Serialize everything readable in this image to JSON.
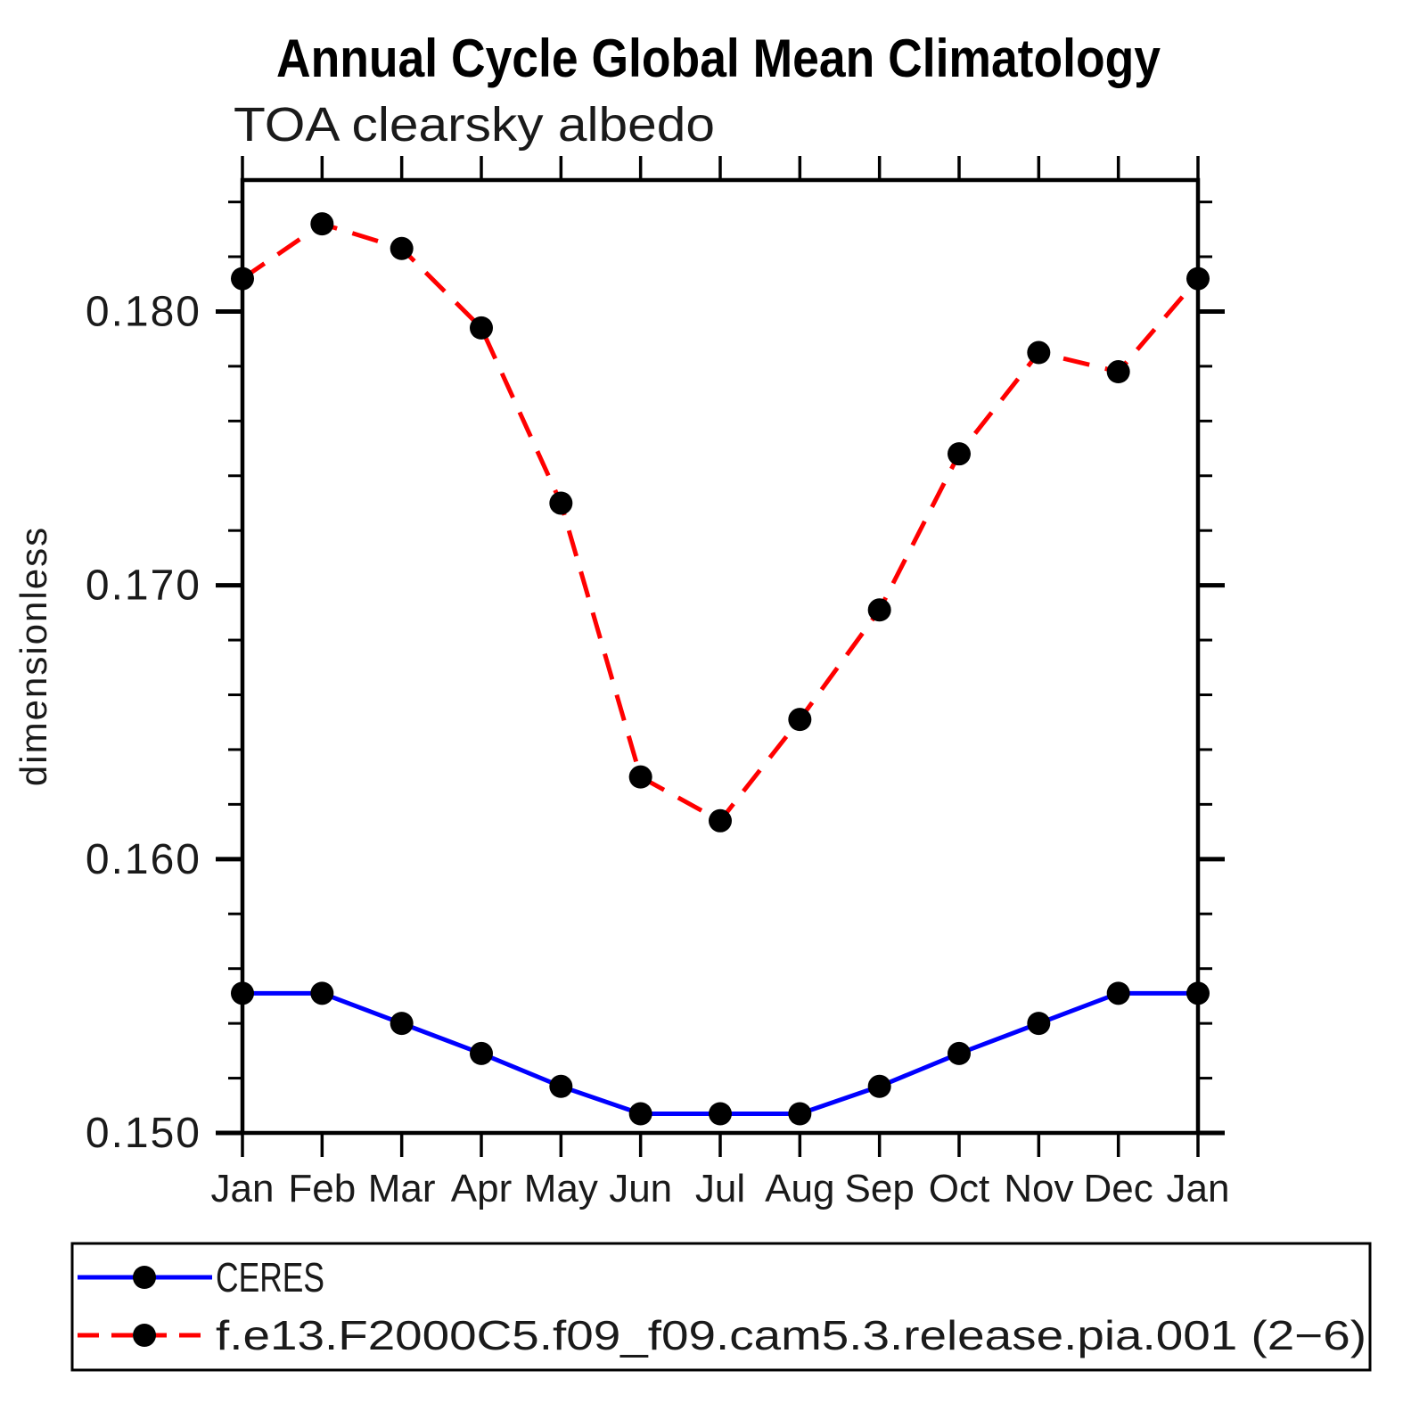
{
  "chart_data": {
    "type": "line",
    "title": "Annual Cycle Global Mean Climatology",
    "subtitle": "TOA clearsky albedo",
    "ylabel": "dimensionless",
    "xlabel": "",
    "categories": [
      "Jan",
      "Feb",
      "Mar",
      "Apr",
      "May",
      "Jun",
      "Jul",
      "Aug",
      "Sep",
      "Oct",
      "Nov",
      "Dec",
      "Jan"
    ],
    "series": [
      {
        "name": "CERES",
        "color": "#0000ff",
        "line_style": "solid",
        "marker": "filled-circle",
        "marker_color": "#000000",
        "values": [
          0.1551,
          0.1551,
          0.154,
          0.1529,
          0.1517,
          0.1507,
          0.1507,
          0.1507,
          0.1517,
          0.1529,
          0.154,
          0.1551,
          0.1551
        ]
      },
      {
        "name": "f.e13.F2000C5.f09_f09.cam5.3.release.pia.001 (2−6)",
        "color": "#ff0000",
        "line_style": "dashed",
        "marker": "filled-circle",
        "marker_color": "#000000",
        "values": [
          0.1812,
          0.1832,
          0.1823,
          0.1794,
          0.173,
          0.163,
          0.1614,
          0.1651,
          0.1691,
          0.1748,
          0.1785,
          0.1778,
          0.1812
        ]
      }
    ],
    "ylim": [
      0.15,
      0.1848
    ],
    "yticks_major": [
      0.15,
      0.16,
      0.17,
      0.18
    ],
    "ytick_labels": [
      "0.150",
      "0.160",
      "0.170",
      "0.180"
    ],
    "ytick_minor_step": 0.002,
    "grid": false,
    "legend_position": "bottom",
    "frame_color": "#000000"
  }
}
